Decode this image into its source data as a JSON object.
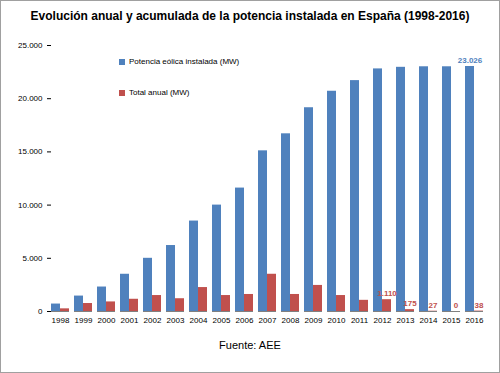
{
  "chart_data": {
    "type": "bar",
    "title": "Evolución anual y acumulada de la potencia instalada en España (1998-2016)",
    "caption": "Fuente: AEE",
    "categories": [
      "1998",
      "1999",
      "2000",
      "2001",
      "2002",
      "2003",
      "2004",
      "2005",
      "2006",
      "2007",
      "2008",
      "2009",
      "2010",
      "2011",
      "2012",
      "2013",
      "2014",
      "2015",
      "2016"
    ],
    "series": [
      {
        "name": "Potencia eólica instalada (MW)",
        "color": "#4f81bd",
        "values": [
          700,
          1450,
          2300,
          3500,
          5000,
          6200,
          8500,
          10000,
          11600,
          15100,
          16700,
          19150,
          20700,
          21700,
          22800,
          22950,
          23000,
          23000,
          23026
        ],
        "value_labels": [
          null,
          null,
          null,
          null,
          null,
          null,
          null,
          null,
          null,
          null,
          null,
          null,
          null,
          null,
          null,
          null,
          null,
          null,
          "23.026"
        ]
      },
      {
        "name": "Total anual (MW)",
        "color": "#c0504d",
        "values": [
          250,
          750,
          900,
          1150,
          1500,
          1200,
          2250,
          1500,
          1600,
          3500,
          1600,
          2450,
          1500,
          1050,
          1110,
          175,
          27,
          0,
          38
        ],
        "value_labels": [
          null,
          null,
          null,
          null,
          null,
          null,
          null,
          null,
          null,
          null,
          null,
          null,
          null,
          null,
          "1.110",
          "175",
          "27",
          "0",
          "38"
        ]
      }
    ],
    "ylim": [
      0,
      25000
    ],
    "yticks": [
      0,
      {
        "value": 5000,
        "label": "5.000"
      },
      {
        "value": 10000,
        "label": "10.000"
      },
      {
        "value": 15000,
        "label": "15.000"
      },
      {
        "value": 20000,
        "label": "20.000"
      },
      {
        "value": 25000,
        "label": "25.000"
      }
    ],
    "grid": false,
    "legend": "top-left",
    "data_labels": true
  }
}
